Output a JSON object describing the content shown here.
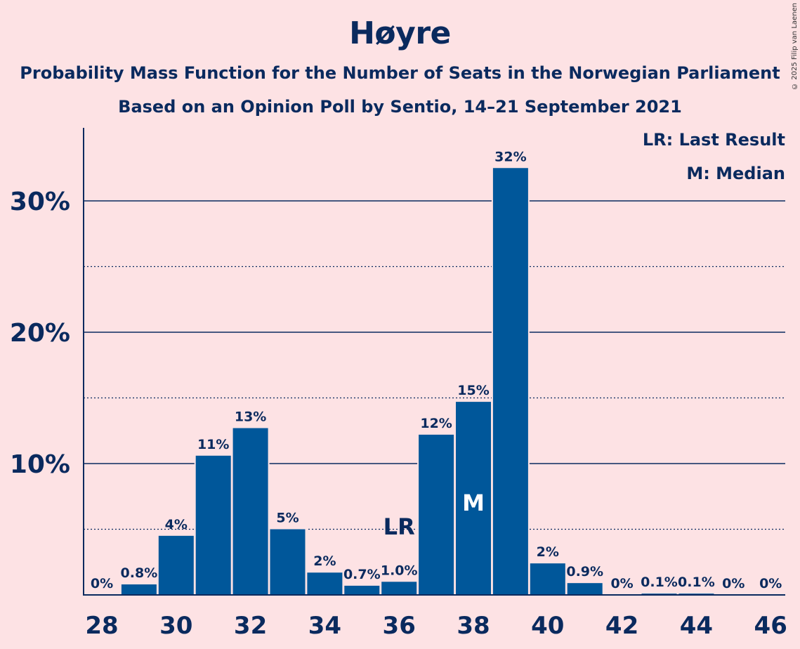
{
  "title": "Høyre",
  "subtitle1": "Probability Mass Function for the Number of Seats in the Norwegian Parliament",
  "subtitle2": "Based on an Opinion Poll by Sentio, 14–21 September 2021",
  "copyright": "© 2025 Filip van Laenen",
  "legend": {
    "last_result": "LR: Last Result",
    "median": "M: Median"
  },
  "colors": {
    "background": "#fde2e4",
    "bar": "#00579a",
    "text": "#0a2a5e"
  },
  "chart_data": {
    "type": "bar",
    "x": [
      28,
      29,
      30,
      31,
      32,
      33,
      34,
      35,
      36,
      37,
      38,
      39,
      40,
      41,
      42,
      43,
      44,
      45,
      46
    ],
    "values": [
      0,
      0.8,
      4.5,
      10.6,
      12.7,
      5.0,
      1.7,
      0.7,
      1.0,
      12.2,
      14.7,
      32.5,
      2.4,
      0.9,
      0,
      0.1,
      0.1,
      0,
      0
    ],
    "data_labels": [
      "0%",
      "0.8%",
      "4%",
      "11%",
      "13%",
      "5%",
      "2%",
      "0.7%",
      "1.0%",
      "12%",
      "15%",
      "32%",
      "2%",
      "0.9%",
      "0%",
      "0.1%",
      "0.1%",
      "0%",
      "0%"
    ],
    "x_tick_labels": [
      "28",
      "30",
      "32",
      "34",
      "36",
      "38",
      "40",
      "42",
      "44",
      "46"
    ],
    "y_ticks": [
      10,
      20,
      30
    ],
    "y_tick_labels": [
      "10%",
      "20%",
      "30%"
    ],
    "y_minor_ticks": [
      5,
      15,
      25
    ],
    "ylim": [
      0,
      35
    ],
    "last_result_seat": 36,
    "last_result_label": "LR",
    "median_seat": 38,
    "median_label": "M"
  }
}
